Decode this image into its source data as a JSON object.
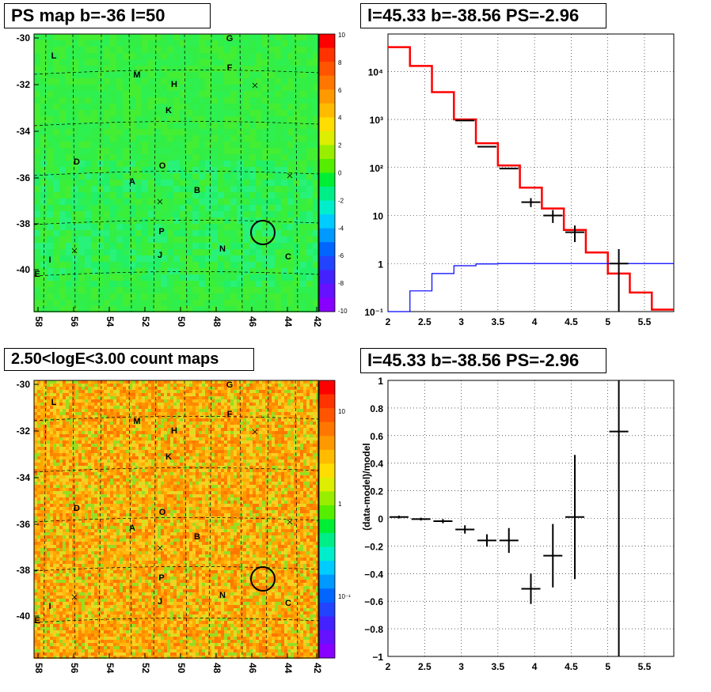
{
  "maps": [
    {
      "title": "PS map b=-36 l=50",
      "type": "ps",
      "x_ticks": [
        "58",
        "56",
        "54",
        "52",
        "50",
        "48",
        "46",
        "44",
        "42"
      ],
      "y_ticks": [
        "-30",
        "-32",
        "-34",
        "-36",
        "-38",
        "-40"
      ],
      "z_ticks": [
        "10",
        "8",
        "6",
        "4",
        "2",
        "0",
        "-2",
        "-4",
        "-6",
        "-8",
        "-10"
      ]
    },
    {
      "title": "2.50<logE<3.00 count maps",
      "type": "counts",
      "x_ticks": [
        "58",
        "56",
        "54",
        "52",
        "50",
        "48",
        "46",
        "44",
        "42"
      ],
      "y_ticks": [
        "-30",
        "-32",
        "-34",
        "-36",
        "-38",
        "-40"
      ],
      "z_ticks": [
        "10",
        "1",
        "10⁻¹"
      ]
    }
  ],
  "source_labels": [
    "G",
    "L",
    "F",
    "M",
    "H",
    "K",
    "D",
    "O",
    "A",
    "B",
    "P",
    "N",
    "I",
    "J",
    "C",
    "E"
  ],
  "chart_data": [
    {
      "type": "step",
      "title": "l=45.33 b=-38.56 PS=-2.96",
      "log_y": true,
      "xlim": [
        2,
        5.9
      ],
      "ylim": [
        0.1,
        60000
      ],
      "x_ticks": [
        "2",
        "2.5",
        "3",
        "3.5",
        "4",
        "4.5",
        "5",
        "5.5"
      ],
      "y_ticks": [
        "10⁻¹",
        "1",
        "10",
        "10²",
        "10³",
        "10⁴"
      ],
      "bin_edges": [
        2.0,
        2.3,
        2.6,
        2.9,
        3.2,
        3.5,
        3.8,
        4.1,
        4.4,
        4.7,
        5.0,
        5.3,
        5.6,
        5.9
      ],
      "series": [
        {
          "color": "#ff0000",
          "values": [
            32000,
            13000,
            3700,
            1000,
            320,
            110,
            38,
            14,
            5,
            1.7,
            0.62,
            0.25,
            0.11
          ]
        },
        {
          "color": "#0000ff",
          "values": [
            0.1,
            0.27,
            0.62,
            0.9,
            0.98,
            1.0,
            1.0,
            1.0,
            1.0,
            1.0,
            1.0,
            1.0,
            1.0
          ]
        }
      ],
      "points": [
        {
          "x": 3.05,
          "y": 950,
          "err": 0
        },
        {
          "x": 3.35,
          "y": 270,
          "err": 0
        },
        {
          "x": 3.65,
          "y": 95,
          "err": 0
        },
        {
          "x": 3.95,
          "y": 19,
          "err": 4
        },
        {
          "x": 4.25,
          "y": 10,
          "err": 3
        },
        {
          "x": 4.55,
          "y": 4.5,
          "err": 1.7
        },
        {
          "x": 5.15,
          "y": 1.0,
          "err": 1.0
        }
      ]
    },
    {
      "type": "scatter",
      "title": "l=45.33 b=-38.56 PS=-2.96",
      "ylabel": "(data-model)/model",
      "xlim": [
        2,
        5.9
      ],
      "ylim": [
        -1,
        1
      ],
      "x_ticks": [
        "2",
        "2.5",
        "3",
        "3.5",
        "4",
        "4.5",
        "5",
        "5.5"
      ],
      "y_ticks": [
        "−1",
        "−0.8",
        "−0.6",
        "−0.4",
        "−0.2",
        "0",
        "0.2",
        "0.4",
        "0.6",
        "0.8",
        "1"
      ],
      "points": [
        {
          "x": 2.15,
          "y": 0.01,
          "err": 0.01
        },
        {
          "x": 2.45,
          "y": -0.005,
          "err": 0.01
        },
        {
          "x": 2.75,
          "y": -0.02,
          "err": 0.015
        },
        {
          "x": 3.05,
          "y": -0.08,
          "err": 0.03
        },
        {
          "x": 3.35,
          "y": -0.16,
          "err": 0.045
        },
        {
          "x": 3.65,
          "y": -0.16,
          "err": 0.09
        },
        {
          "x": 3.95,
          "y": -0.51,
          "err": 0.11
        },
        {
          "x": 4.25,
          "y": -0.27,
          "err": 0.23
        },
        {
          "x": 4.55,
          "y": 0.01,
          "err": 0.45
        },
        {
          "x": 5.15,
          "y": 0.63,
          "err": 1.65
        }
      ]
    }
  ]
}
